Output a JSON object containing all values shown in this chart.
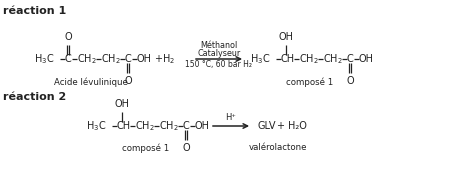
{
  "bg_color": "#ffffff",
  "text_color": "#222222",
  "reaction1_label": "réaction 1",
  "reaction2_label": "réaction 2",
  "r1_name": "Acide lévulinique",
  "r1_product_name": "composé 1",
  "r2_name": "composé 1",
  "r2_name2": "valérolactone",
  "arrow_condition1a": "Méthanol",
  "arrow_condition1b": "Catalyseur",
  "arrow_condition1c": "150 °C, 60 bar H₂",
  "arrow_condition2": "H⁺",
  "r2_product1": "GLV",
  "r2_plus": "+",
  "r2_product2": "H₂O"
}
